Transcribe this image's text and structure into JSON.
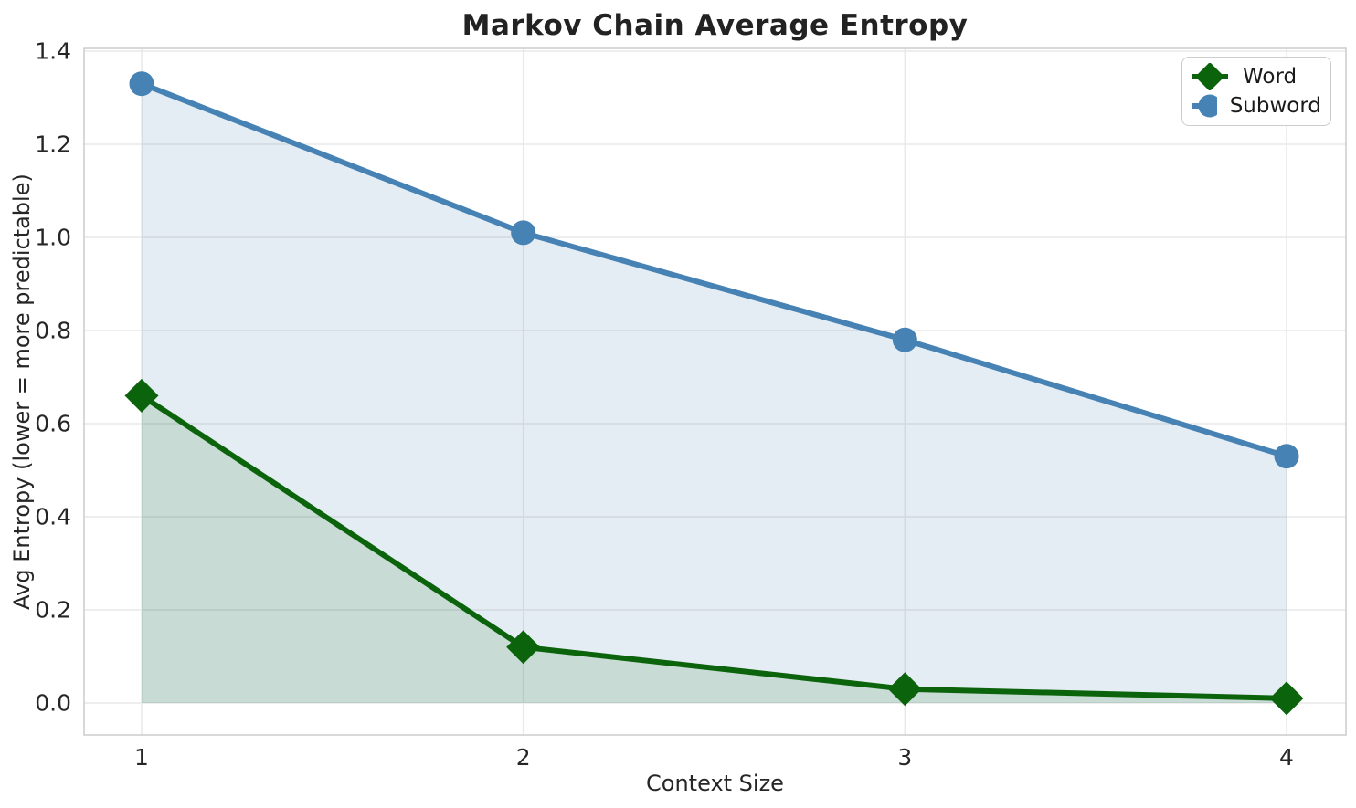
{
  "chart_data": {
    "type": "line",
    "title": "Markov Chain Average Entropy",
    "xlabel": "Context Size",
    "ylabel": "Avg Entropy (lower = more predictable)",
    "categories": [
      1,
      2,
      3,
      4
    ],
    "xticks": [
      "1",
      "2",
      "3",
      "4"
    ],
    "yticks": [
      "0.0",
      "0.2",
      "0.4",
      "0.6",
      "0.8",
      "1.0",
      "1.2",
      "1.4"
    ],
    "xlim": [
      0.85,
      4.16
    ],
    "ylim": [
      -0.07,
      1.41
    ],
    "grid": true,
    "legend_position": "upper right",
    "area_fill_to_zero": true,
    "series": [
      {
        "name": "Word",
        "values": [
          0.66,
          0.12,
          0.03,
          0.01
        ],
        "color": "#0b640b",
        "fill_color": "rgba(11,100,11,0.13)",
        "marker": "diamond"
      },
      {
        "name": "Subword",
        "values": [
          1.33,
          1.01,
          0.78,
          0.53
        ],
        "color": "#4682b4",
        "fill_color": "rgba(70,130,180,0.14)",
        "marker": "circle"
      }
    ]
  },
  "colors": {
    "grid": "#e8e8e8",
    "spine": "#cccccc",
    "tick_text": "#262626",
    "background": "#ffffff"
  }
}
